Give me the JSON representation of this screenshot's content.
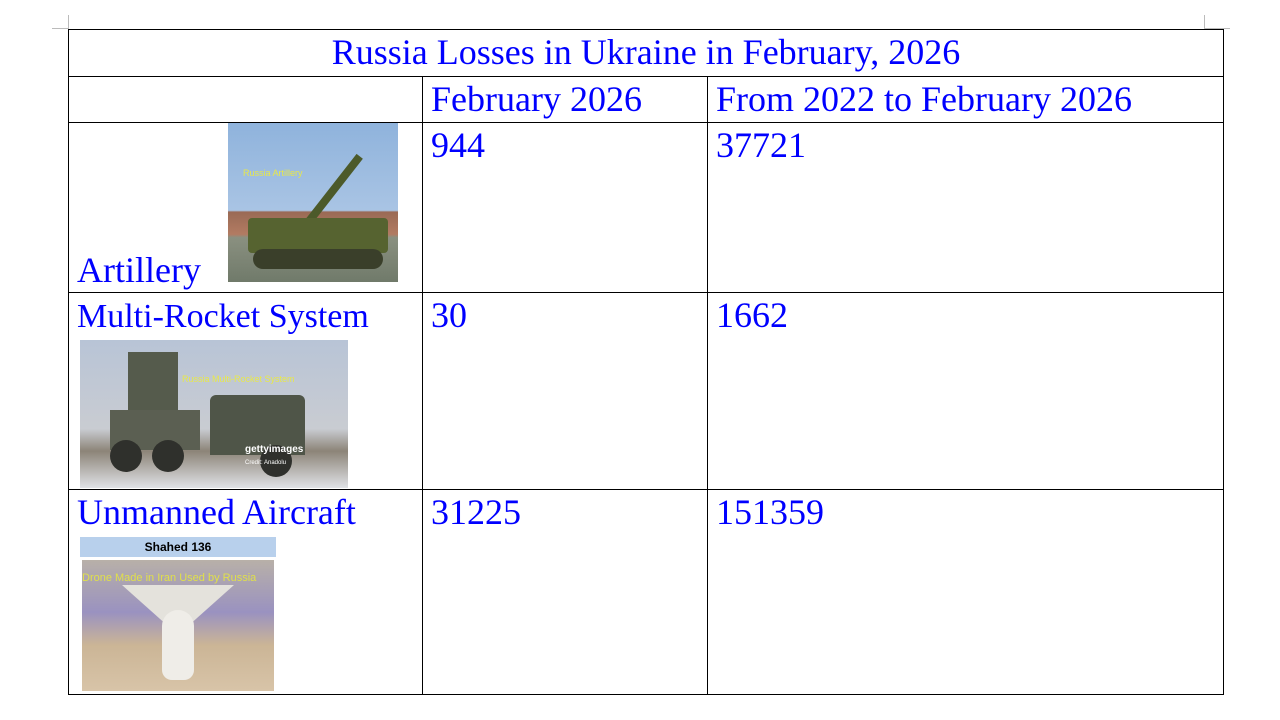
{
  "table": {
    "title": "Russia Losses in Ukraine in February, 2026",
    "headers": [
      "",
      "February 2026",
      "From 2022 to February 2026"
    ],
    "rows": [
      {
        "label": "Artillery",
        "feb": "944",
        "total": "37721",
        "image_caption": "Russia Artillery"
      },
      {
        "label": "Multi-Rocket System",
        "feb": "30",
        "total": "1662",
        "image_caption": "Russia Multi-Rocket System",
        "watermark": "gettyimages",
        "credit": "Credit: Anadolu"
      },
      {
        "label": "Unmanned Aircraft",
        "feb": "31225",
        "total": "151359",
        "image_title": "Shahed 136",
        "image_caption": "Drone Made in Iran Used by Russia"
      }
    ]
  }
}
